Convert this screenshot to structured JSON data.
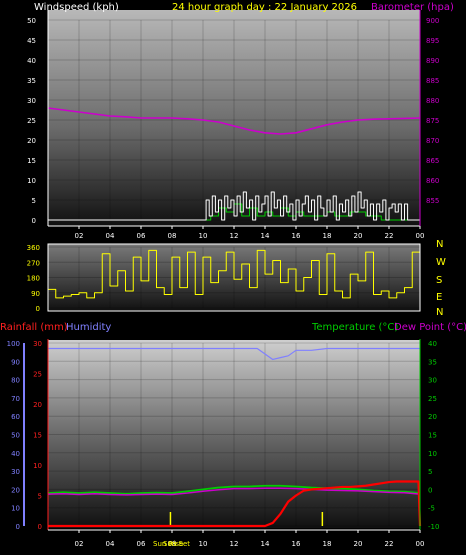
{
  "panel_top": {
    "left_label": "Windspeed (kph)",
    "title": "24 hour graph day : 22 January 2026",
    "right_label": "Barometer (hpa)"
  },
  "panel_mid": {
    "compass": [
      "N",
      "W",
      "S",
      "E",
      "N"
    ]
  },
  "panel_bottom": {
    "rain_label": "Rainfall (mm)",
    "humidity_label": "Humidity",
    "temp_label": "Temperature (°C)",
    "dew_label": "Dew Point (°C)",
    "sunrise_label": "Sun Rise",
    "sunset_label": "Sun Set"
  },
  "colors": {
    "wind": "#ffffff",
    "gust": "#00cc00",
    "barometer": "#cc00cc",
    "direction": "#ffff00",
    "rainfall": "#ff0000",
    "humidity": "#8080ff",
    "temperature": "#00cc00",
    "dewpoint": "#cc00cc"
  },
  "chart_data": [
    {
      "type": "line",
      "name": "wind-barometer",
      "x_ticks": [
        "02",
        "04",
        "06",
        "08",
        "10",
        "12",
        "14",
        "16",
        "18",
        "20",
        "22",
        "00"
      ],
      "ylim_left": [
        0,
        50
      ],
      "yticks_left": [
        0,
        5,
        10,
        15,
        20,
        25,
        30,
        35,
        40,
        45,
        50
      ],
      "ylim_right": [
        850,
        900
      ],
      "yticks_right": [
        855,
        860,
        865,
        870,
        875,
        880,
        885,
        890,
        895,
        900
      ],
      "series": [
        {
          "name": "Barometer (hpa)",
          "axis": "right",
          "x": [
            0,
            1,
            2,
            3,
            4,
            5,
            6,
            7,
            8,
            9,
            10,
            11,
            12,
            13,
            14,
            15,
            16,
            17,
            18,
            19,
            20,
            21,
            22,
            23,
            24
          ],
          "values": [
            878,
            877.5,
            877,
            876.5,
            876,
            875.8,
            875.5,
            875.5,
            875.5,
            875.3,
            875,
            874.5,
            873.5,
            872.5,
            871.8,
            871.5,
            871.8,
            872.8,
            873.8,
            874.5,
            875,
            875.2,
            875.3,
            875.4,
            875.5
          ]
        },
        {
          "name": "Windspeed (kph)",
          "axis": "left",
          "x": [
            0,
            10,
            10.2,
            10.4,
            10.6,
            10.8,
            11,
            11.2,
            11.4,
            11.6,
            11.8,
            12,
            12.2,
            12.4,
            12.6,
            12.8,
            13,
            13.2,
            13.4,
            13.6,
            13.8,
            14,
            14.2,
            14.4,
            14.6,
            14.8,
            15,
            15.2,
            15.4,
            15.6,
            15.8,
            16,
            16.2,
            16.4,
            16.6,
            16.8,
            17,
            17.2,
            17.4,
            17.6,
            17.8,
            18,
            18.2,
            18.4,
            18.6,
            18.8,
            19,
            19.2,
            19.4,
            19.6,
            19.8,
            20,
            20.2,
            20.4,
            20.6,
            20.8,
            21,
            21.2,
            21.4,
            21.6,
            21.8,
            22,
            22.2,
            22.4,
            22.6,
            22.8,
            23,
            23.2,
            23.4,
            24
          ],
          "values": [
            0,
            0,
            5,
            1,
            6,
            2,
            5,
            0,
            6,
            3,
            5,
            1,
            6,
            2,
            7,
            3,
            5,
            0,
            6,
            2,
            4,
            6,
            1,
            7,
            3,
            5,
            1,
            6,
            2,
            4,
            0,
            5,
            1,
            4,
            6,
            2,
            5,
            0,
            6,
            3,
            1,
            5,
            2,
            6,
            0,
            4,
            2,
            5,
            1,
            6,
            2,
            7,
            3,
            5,
            1,
            4,
            0,
            4,
            2,
            5,
            0,
            3,
            4,
            2,
            4,
            0,
            4,
            0,
            0,
            0
          ]
        },
        {
          "name": "Gust",
          "axis": "left",
          "x": [
            0,
            10,
            10.5,
            11,
            11.5,
            12,
            12.5,
            13,
            13.5,
            14,
            14.5,
            15,
            15.5,
            16,
            16.5,
            17,
            17.5,
            18,
            18.5,
            19,
            19.5,
            20,
            20.5,
            21,
            21.5,
            22,
            24
          ],
          "values": [
            0,
            0,
            1,
            3,
            2,
            4,
            1,
            3,
            1,
            2,
            1,
            3,
            1,
            2,
            1,
            1,
            1,
            2,
            1,
            1,
            2,
            2,
            1,
            1,
            0,
            0,
            0
          ]
        }
      ]
    },
    {
      "type": "line",
      "name": "wind-direction",
      "ylim": [
        0,
        360
      ],
      "yticks": [
        0,
        90,
        180,
        270,
        360
      ],
      "series": [
        {
          "name": "Wind direction",
          "x": [
            0,
            0.5,
            1,
            1.5,
            2,
            2.5,
            3,
            3.5,
            4,
            4.5,
            5,
            5.5,
            6,
            6.5,
            7,
            7.5,
            8,
            8.5,
            9,
            9.5,
            10,
            10.5,
            11,
            11.5,
            12,
            12.5,
            13,
            13.5,
            14,
            14.5,
            15,
            15.5,
            16,
            16.5,
            17,
            17.5,
            18,
            18.5,
            19,
            19.5,
            20,
            20.5,
            21,
            21.5,
            22,
            22.5,
            23,
            23.5,
            24
          ],
          "values": [
            110,
            60,
            70,
            80,
            90,
            60,
            90,
            320,
            130,
            220,
            100,
            300,
            160,
            340,
            120,
            80,
            300,
            120,
            330,
            80,
            300,
            150,
            220,
            330,
            170,
            260,
            120,
            340,
            200,
            280,
            150,
            230,
            100,
            180,
            280,
            80,
            320,
            100,
            60,
            200,
            160,
            330,
            80,
            100,
            60,
            90,
            120,
            330,
            120
          ]
        }
      ]
    },
    {
      "type": "line",
      "name": "rain-humidity-temperature",
      "ylim_humidity": [
        0,
        100
      ],
      "yticks_humidity": [
        0,
        10,
        20,
        30,
        40,
        50,
        60,
        70,
        80,
        90,
        100
      ],
      "ylim_rain": [
        0,
        30
      ],
      "yticks_rain": [
        0,
        5,
        10,
        15,
        20,
        25,
        30
      ],
      "ylim_temp": [
        -10,
        40
      ],
      "yticks_temp": [
        -10,
        -5,
        0,
        5,
        10,
        15,
        20,
        25,
        30,
        35,
        40
      ],
      "sunrise_hour": 7.9,
      "sunset_hour": 17.7,
      "series": [
        {
          "name": "Humidity",
          "axis": "humidity",
          "x": [
            0,
            2,
            4,
            6,
            8,
            10,
            12,
            13.5,
            14,
            14.5,
            15,
            15.5,
            16,
            17,
            18,
            20,
            22,
            24
          ],
          "values": [
            97,
            97,
            97,
            97,
            97,
            97,
            97,
            97,
            94,
            91,
            92,
            93,
            96,
            96,
            97,
            97,
            97,
            97
          ]
        },
        {
          "name": "Rainfall (mm)",
          "axis": "rain",
          "x": [
            0,
            14,
            14.5,
            15,
            15.5,
            16,
            16.5,
            17,
            17.5,
            18,
            18.5,
            19,
            19.5,
            20,
            20.5,
            21,
            21.5,
            22,
            22.5,
            23,
            23.9,
            24
          ],
          "values": [
            0,
            0,
            0.5,
            2,
            4,
            5,
            5.8,
            6,
            6.1,
            6.2,
            6.3,
            6.4,
            6.4,
            6.5,
            6.6,
            6.8,
            7,
            7.2,
            7.3,
            7.3,
            7.3,
            0
          ]
        },
        {
          "name": "Temperature (°C)",
          "axis": "temp",
          "x": [
            0,
            1,
            2,
            3,
            4,
            5,
            6,
            7,
            8,
            9,
            10,
            11,
            12,
            13,
            14,
            15,
            16,
            17,
            18,
            19,
            20,
            21,
            22,
            23,
            24
          ],
          "values": [
            -1,
            -0.8,
            -1,
            -0.8,
            -1,
            -1.2,
            -1,
            -0.9,
            -1,
            -0.5,
            0,
            0.5,
            0.8,
            0.8,
            1,
            1,
            0.8,
            0.5,
            0.3,
            0.2,
            0,
            -0.3,
            -0.5,
            -0.6,
            -1
          ]
        },
        {
          "name": "Dew Point (°C)",
          "axis": "temp",
          "x": [
            0,
            1,
            2,
            3,
            4,
            5,
            6,
            7,
            8,
            9,
            10,
            11,
            12,
            13,
            14,
            15,
            16,
            17,
            18,
            19,
            20,
            21,
            22,
            23,
            24
          ],
          "values": [
            -1.3,
            -1.2,
            -1.4,
            -1.2,
            -1.4,
            -1.5,
            -1.4,
            -1.3,
            -1.4,
            -1,
            -0.5,
            -0.1,
            0.2,
            0.2,
            0.3,
            0.3,
            0.2,
            0,
            -0.2,
            -0.3,
            -0.4,
            -0.6,
            -0.8,
            -0.9,
            -1.3
          ]
        }
      ]
    }
  ]
}
